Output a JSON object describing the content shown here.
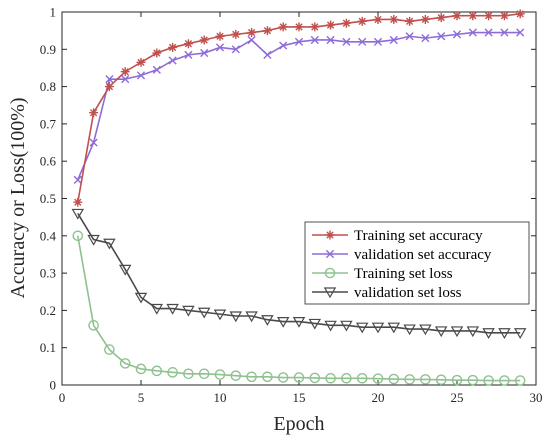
{
  "chart_data": {
    "type": "line",
    "xlabel": "Epoch",
    "ylabel": "Accuracy or Loss(100%)",
    "xlim": [
      0,
      30
    ],
    "ylim": [
      0,
      1
    ],
    "xticks": [
      0,
      5,
      10,
      15,
      20,
      25,
      30
    ],
    "yticks": [
      0,
      0.1,
      0.2,
      0.3,
      0.4,
      0.5,
      0.6,
      0.7,
      0.8,
      0.9,
      1
    ],
    "grid": false,
    "legend_position": "right-middle",
    "x": [
      1,
      2,
      3,
      4,
      5,
      6,
      7,
      8,
      9,
      10,
      11,
      12,
      13,
      14,
      15,
      16,
      17,
      18,
      19,
      20,
      21,
      22,
      23,
      24,
      25,
      26,
      27,
      28,
      29
    ],
    "series": [
      {
        "name": "Training set accuracy",
        "color": "#c0504d",
        "marker": "asterisk",
        "values": [
          0.49,
          0.73,
          0.8,
          0.84,
          0.865,
          0.89,
          0.905,
          0.915,
          0.925,
          0.935,
          0.94,
          0.945,
          0.95,
          0.96,
          0.96,
          0.96,
          0.965,
          0.97,
          0.975,
          0.98,
          0.98,
          0.975,
          0.98,
          0.985,
          0.99,
          0.99,
          0.99,
          0.99,
          0.995
        ]
      },
      {
        "name": "validation set accuracy",
        "color": "#8e6bd9",
        "marker": "cross",
        "values": [
          0.55,
          0.65,
          0.82,
          0.82,
          0.83,
          0.845,
          0.87,
          0.885,
          0.89,
          0.905,
          0.9,
          0.925,
          0.885,
          0.91,
          0.92,
          0.925,
          0.925,
          0.92,
          0.92,
          0.92,
          0.925,
          0.935,
          0.93,
          0.935,
          0.94,
          0.945,
          0.945,
          0.945,
          0.945
        ]
      },
      {
        "name": "Training set loss",
        "color": "#8fc18f",
        "marker": "circle",
        "values": [
          0.4,
          0.16,
          0.095,
          0.058,
          0.043,
          0.038,
          0.034,
          0.03,
          0.03,
          0.028,
          0.025,
          0.022,
          0.022,
          0.02,
          0.02,
          0.019,
          0.018,
          0.018,
          0.018,
          0.017,
          0.016,
          0.015,
          0.015,
          0.014,
          0.013,
          0.013,
          0.012,
          0.012,
          0.012
        ]
      },
      {
        "name": "validation set loss",
        "color": "#4a4a4a",
        "marker": "triangle-down",
        "values": [
          0.46,
          0.39,
          0.38,
          0.31,
          0.235,
          0.205,
          0.205,
          0.2,
          0.195,
          0.19,
          0.185,
          0.185,
          0.175,
          0.17,
          0.17,
          0.165,
          0.16,
          0.16,
          0.155,
          0.155,
          0.155,
          0.15,
          0.15,
          0.145,
          0.145,
          0.145,
          0.14,
          0.14,
          0.14
        ]
      }
    ]
  }
}
